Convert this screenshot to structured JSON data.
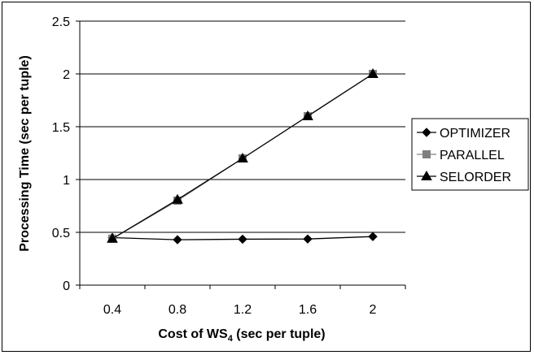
{
  "chart_data": {
    "type": "line",
    "xlabel_main": "Cost of WS",
    "xlabel_sub": "4",
    "xlabel_rest": " (sec per tuple)",
    "ylabel": "Processing Time (sec per tuple)",
    "x": [
      0.4,
      0.8,
      1.2,
      1.6,
      2
    ],
    "x_tick_labels": [
      "0.4",
      "0.8",
      "1.2",
      "1.6",
      "2"
    ],
    "ylim": [
      0,
      2.5
    ],
    "y_ticks": [
      0,
      0.5,
      1,
      1.5,
      2,
      2.5
    ],
    "y_tick_labels": [
      "0",
      "0.5",
      "1",
      "1.5",
      "2",
      "2.5"
    ],
    "grid": "horizontal",
    "legend_position": "right",
    "series": [
      {
        "name": "OPTIMIZER",
        "values": [
          0.45,
          0.43,
          0.435,
          0.437,
          0.46
        ],
        "marker": "diamond",
        "color": "#000000"
      },
      {
        "name": "PARALLEL",
        "values": [
          0.44,
          0.8,
          1.2,
          1.6,
          2.0
        ],
        "marker": "square",
        "color": "#808080"
      },
      {
        "name": "SELORDER",
        "values": [
          0.44,
          0.81,
          1.2,
          1.6,
          2.0
        ],
        "marker": "triangle",
        "color": "#000000"
      }
    ]
  }
}
